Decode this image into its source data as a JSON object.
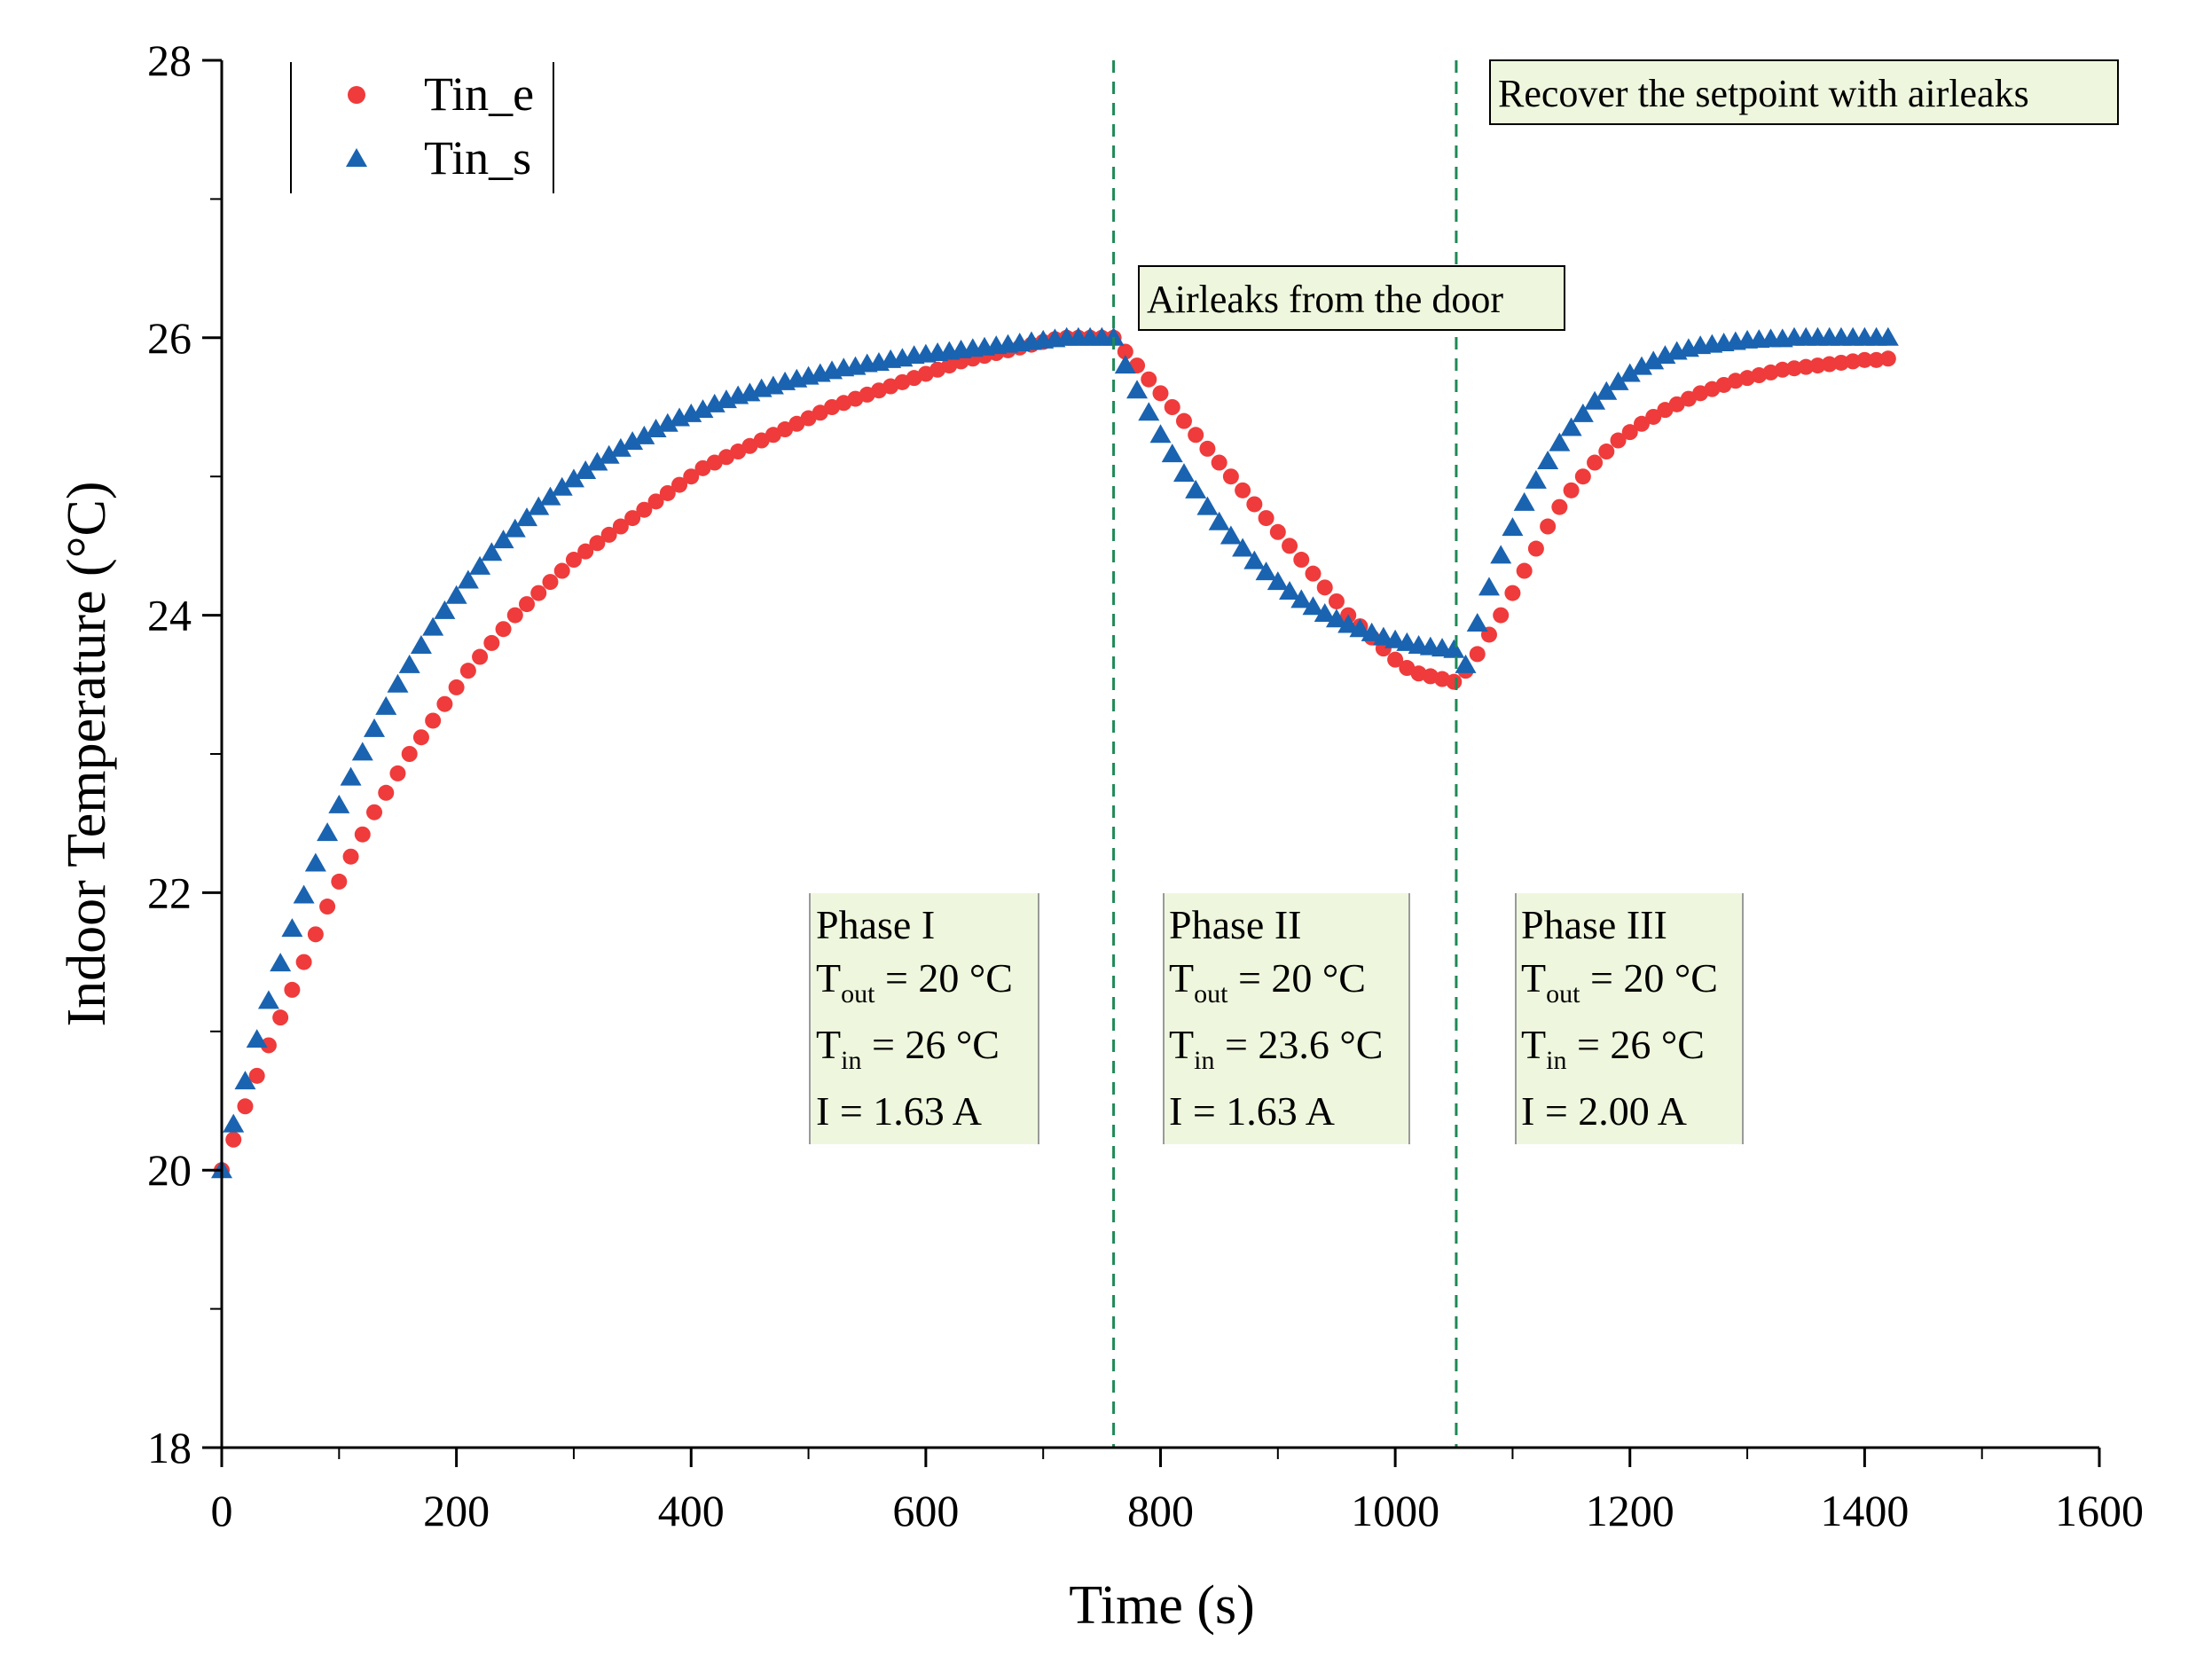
{
  "chart_data": {
    "type": "scatter",
    "title": "",
    "xlabel": "Time (s)",
    "ylabel": "Indoor Temperature (°C)",
    "xlim": [
      0,
      1600
    ],
    "ylim": [
      18,
      28
    ],
    "xticks": [
      "0",
      "200",
      "400",
      "600",
      "800",
      "1000",
      "1200",
      "1400",
      "1600"
    ],
    "yticks": [
      "18",
      "20",
      "22",
      "24",
      "26",
      "28"
    ],
    "grid": false,
    "legend_position": "top-left",
    "series": [
      {
        "name": "Tin_e",
        "marker": "circle",
        "color": "#ef3b3b",
        "x": [
          0,
          10,
          20,
          30,
          40,
          50,
          60,
          70,
          80,
          90,
          100,
          110,
          120,
          130,
          140,
          150,
          160,
          170,
          180,
          190,
          200,
          210,
          220,
          230,
          240,
          250,
          260,
          270,
          280,
          290,
          300,
          310,
          320,
          330,
          340,
          350,
          360,
          370,
          380,
          390,
          400,
          410,
          420,
          430,
          440,
          450,
          460,
          470,
          480,
          490,
          500,
          510,
          520,
          530,
          540,
          550,
          560,
          570,
          580,
          590,
          600,
          610,
          620,
          630,
          640,
          650,
          660,
          670,
          680,
          690,
          700,
          710,
          720,
          730,
          740,
          750,
          760,
          770,
          780,
          790,
          800,
          810,
          820,
          830,
          840,
          850,
          860,
          870,
          880,
          890,
          900,
          910,
          920,
          930,
          940,
          950,
          960,
          970,
          980,
          990,
          1000,
          1010,
          1020,
          1030,
          1040,
          1050,
          1060,
          1070,
          1080,
          1090,
          1100,
          1110,
          1120,
          1130,
          1140,
          1150,
          1160,
          1170,
          1180,
          1190,
          1200,
          1210,
          1220,
          1230,
          1240,
          1250,
          1260,
          1270,
          1280,
          1290,
          1300,
          1310,
          1320,
          1330,
          1340,
          1350,
          1360,
          1370,
          1380,
          1390,
          1400,
          1410,
          1420
        ],
        "y": [
          20.0,
          20.22,
          20.46,
          20.68,
          20.9,
          21.1,
          21.3,
          21.5,
          21.7,
          21.9,
          22.08,
          22.26,
          22.42,
          22.58,
          22.72,
          22.86,
          23.0,
          23.12,
          23.24,
          23.36,
          23.48,
          23.6,
          23.7,
          23.8,
          23.9,
          24.0,
          24.08,
          24.16,
          24.24,
          24.32,
          24.4,
          24.46,
          24.52,
          24.58,
          24.64,
          24.7,
          24.76,
          24.82,
          24.88,
          24.94,
          25.0,
          25.06,
          25.1,
          25.14,
          25.18,
          25.22,
          25.26,
          25.3,
          25.34,
          25.38,
          25.42,
          25.46,
          25.5,
          25.53,
          25.56,
          25.59,
          25.62,
          25.65,
          25.68,
          25.71,
          25.74,
          25.77,
          25.8,
          25.83,
          25.85,
          25.87,
          25.89,
          25.91,
          25.93,
          25.95,
          25.97,
          25.99,
          26.0,
          26.0,
          26.0,
          26.0,
          26.0,
          25.9,
          25.8,
          25.7,
          25.6,
          25.5,
          25.4,
          25.3,
          25.2,
          25.1,
          25.0,
          24.9,
          24.8,
          24.7,
          24.6,
          24.5,
          24.4,
          24.3,
          24.2,
          24.1,
          24.0,
          23.92,
          23.84,
          23.76,
          23.68,
          23.62,
          23.58,
          23.56,
          23.54,
          23.52,
          23.6,
          23.72,
          23.86,
          24.0,
          24.16,
          24.32,
          24.48,
          24.64,
          24.78,
          24.9,
          25.0,
          25.1,
          25.18,
          25.26,
          25.32,
          25.38,
          25.43,
          25.48,
          25.52,
          25.56,
          25.6,
          25.63,
          25.66,
          25.69,
          25.71,
          25.73,
          25.75,
          25.77,
          25.78,
          25.79,
          25.8,
          25.81,
          25.82,
          25.83,
          25.84,
          25.84,
          25.85
        ]
      },
      {
        "name": "Tin_s",
        "marker": "triangle",
        "color": "#1a63b0",
        "x": [
          0,
          10,
          20,
          30,
          40,
          50,
          60,
          70,
          80,
          90,
          100,
          110,
          120,
          130,
          140,
          150,
          160,
          170,
          180,
          190,
          200,
          210,
          220,
          230,
          240,
          250,
          260,
          270,
          280,
          290,
          300,
          310,
          320,
          330,
          340,
          350,
          360,
          370,
          380,
          390,
          400,
          410,
          420,
          430,
          440,
          450,
          460,
          470,
          480,
          490,
          500,
          510,
          520,
          530,
          540,
          550,
          560,
          570,
          580,
          590,
          600,
          610,
          620,
          630,
          640,
          650,
          660,
          670,
          680,
          690,
          700,
          710,
          720,
          730,
          740,
          750,
          760,
          770,
          780,
          790,
          800,
          810,
          820,
          830,
          840,
          850,
          860,
          870,
          880,
          890,
          900,
          910,
          920,
          930,
          940,
          950,
          960,
          970,
          980,
          990,
          1000,
          1010,
          1020,
          1030,
          1040,
          1050,
          1060,
          1070,
          1080,
          1090,
          1100,
          1110,
          1120,
          1130,
          1140,
          1150,
          1160,
          1170,
          1180,
          1190,
          1200,
          1210,
          1220,
          1230,
          1240,
          1250,
          1260,
          1270,
          1280,
          1290,
          1300,
          1310,
          1320,
          1330,
          1340,
          1350,
          1360,
          1370,
          1380,
          1390,
          1400,
          1410,
          1420
        ],
        "y": [
          20.0,
          20.33,
          20.64,
          20.94,
          21.22,
          21.49,
          21.74,
          21.98,
          22.21,
          22.43,
          22.63,
          22.83,
          23.01,
          23.18,
          23.34,
          23.5,
          23.64,
          23.78,
          23.91,
          24.03,
          24.14,
          24.25,
          24.35,
          24.45,
          24.54,
          24.62,
          24.7,
          24.78,
          24.85,
          24.92,
          24.98,
          25.04,
          25.1,
          25.15,
          25.2,
          25.25,
          25.29,
          25.34,
          25.38,
          25.42,
          25.45,
          25.48,
          25.52,
          25.55,
          25.58,
          25.6,
          25.63,
          25.65,
          25.68,
          25.7,
          25.72,
          25.74,
          25.76,
          25.78,
          25.79,
          25.81,
          25.82,
          25.84,
          25.85,
          25.87,
          25.88,
          25.89,
          25.9,
          25.91,
          25.92,
          25.93,
          25.94,
          25.95,
          25.96,
          25.97,
          25.98,
          25.99,
          26.0,
          26.0,
          26.0,
          26.0,
          26.0,
          25.8,
          25.62,
          25.46,
          25.3,
          25.16,
          25.02,
          24.9,
          24.78,
          24.67,
          24.57,
          24.48,
          24.39,
          24.31,
          24.24,
          24.17,
          24.11,
          24.06,
          24.01,
          23.97,
          23.93,
          23.9,
          23.87,
          23.84,
          23.82,
          23.8,
          23.78,
          23.77,
          23.76,
          23.75,
          23.64,
          23.94,
          24.2,
          24.43,
          24.63,
          24.81,
          24.97,
          25.11,
          25.24,
          25.35,
          25.45,
          25.54,
          25.61,
          25.68,
          25.74,
          25.79,
          25.83,
          25.87,
          25.9,
          25.92,
          25.94,
          25.95,
          25.96,
          25.97,
          25.98,
          25.985,
          25.99,
          25.99,
          26.0,
          26.0,
          26.0,
          26.0,
          26.0,
          26.0,
          26.0,
          26.0,
          26.0
        ]
      }
    ],
    "vlines": [
      760,
      1052
    ],
    "annotations": {
      "airleaks": "Airleaks from the door",
      "recover": "Recover the setpoint with airleaks"
    },
    "phases": [
      {
        "title": "Phase I",
        "tout_label": "T",
        "tout_sub": "out",
        "tout_val": " = 20 °C",
        "tin_label": "T",
        "tin_sub": "in",
        "tin_val": " = 26 °C",
        "i_label": "I",
        "i_val": " = 1.63 A"
      },
      {
        "title": "Phase II",
        "tout_label": "T",
        "tout_sub": "out",
        "tout_val": " = 20 °C",
        "tin_label": "T",
        "tin_sub": "in",
        "tin_val": " = 23.6 °C",
        "i_label": "I",
        "i_val": " = 1.63 A"
      },
      {
        "title": "Phase III",
        "tout_label": "T",
        "tout_sub": "out",
        "tout_val": " = 20 °C",
        "tin_label": "T",
        "tin_sub": "in",
        "tin_val": " = 26  °C",
        "i_label": "I",
        "i_val": " = 2.00 A"
      }
    ],
    "colors": {
      "annotation_fill": "#eef7dd",
      "vline": "#1f8a55"
    }
  }
}
